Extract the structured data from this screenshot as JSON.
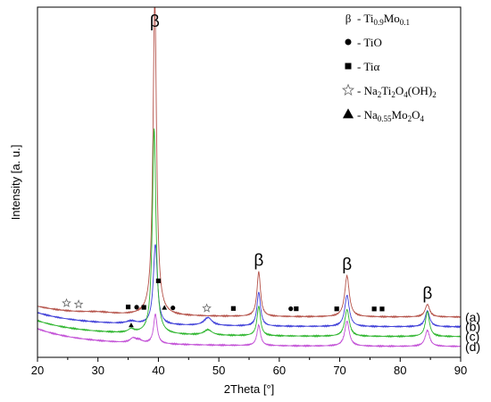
{
  "chart_data": {
    "type": "line",
    "xlabel": "2Theta [°]",
    "ylabel": "Intensity [a. u.]",
    "xlim": [
      20,
      90
    ],
    "xticks": [
      "20",
      "30",
      "40",
      "50",
      "60",
      "70",
      "80",
      "90"
    ],
    "grid": false,
    "legend_position": "top-right",
    "legend": [
      {
        "symbol": "β",
        "marker": "text",
        "label_parts": [
          [
            "Ti",
            ""
          ],
          [
            "0.9",
            "sub"
          ],
          [
            "Mo",
            ""
          ],
          [
            "0.1",
            "sub"
          ]
        ],
        "label_prefix": " - "
      },
      {
        "symbol": "circle",
        "marker": "circle",
        "label_parts": [
          [
            "TiO",
            ""
          ]
        ],
        "label_prefix": " - "
      },
      {
        "symbol": "square",
        "marker": "square",
        "label_parts": [
          [
            "Tiα",
            ""
          ]
        ],
        "label_prefix": " - "
      },
      {
        "symbol": "star",
        "marker": "star",
        "label_parts": [
          [
            "Na",
            ""
          ],
          [
            "2",
            "sub"
          ],
          [
            "Ti",
            ""
          ],
          [
            "2",
            "sub"
          ],
          [
            "O",
            ""
          ],
          [
            "4",
            "sub"
          ],
          [
            "(OH)",
            ""
          ],
          [
            "2",
            "sub"
          ]
        ],
        "label_prefix": " - "
      },
      {
        "symbol": "triangle",
        "marker": "triangle",
        "label_parts": [
          [
            "Na",
            ""
          ],
          [
            "0.55",
            "sub"
          ],
          [
            "Mo",
            ""
          ],
          [
            "2",
            "sub"
          ],
          [
            "O",
            ""
          ],
          [
            "4",
            "sub"
          ]
        ],
        "label_prefix": " - "
      }
    ],
    "series": [
      {
        "name": "(a)",
        "color": "#b5534a",
        "baseline": 0.33,
        "slope": 0.08,
        "bg": 0.04,
        "peaks": [
          [
            39.4,
            3.55,
            0.35
          ],
          [
            56.6,
            0.5,
            0.35
          ],
          [
            71.2,
            0.46,
            0.45
          ],
          [
            84.5,
            0.14,
            0.45
          ],
          [
            30,
            0.02,
            3
          ]
        ]
      },
      {
        "name": "(b)",
        "color": "#3f3fd8",
        "baseline": 0.22,
        "slope": 0.1,
        "bg": 0.06,
        "peaks": [
          [
            39.5,
            0.9,
            0.4
          ],
          [
            48.2,
            0.09,
            0.8
          ],
          [
            56.6,
            0.38,
            0.35
          ],
          [
            71.2,
            0.35,
            0.45
          ],
          [
            84.5,
            0.18,
            0.45
          ],
          [
            35.5,
            0.03,
            1
          ]
        ]
      },
      {
        "name": "(c)",
        "color": "#2db52d",
        "baseline": 0.11,
        "slope": 0.11,
        "bg": 0.07,
        "peaks": [
          [
            39.3,
            2.3,
            0.35
          ],
          [
            48.2,
            0.06,
            0.8
          ],
          [
            56.6,
            0.33,
            0.35
          ],
          [
            71.2,
            0.3,
            0.45
          ],
          [
            84.5,
            0.28,
            0.4
          ],
          [
            35.5,
            0.04,
            0.6
          ]
        ]
      },
      {
        "name": "(d)",
        "color": "#c24fd6",
        "baseline": 0.0,
        "slope": 0.12,
        "bg": 0.08,
        "peaks": [
          [
            39.5,
            0.33,
            0.35
          ],
          [
            56.6,
            0.23,
            0.35
          ],
          [
            71.2,
            0.28,
            0.45
          ],
          [
            84.5,
            0.18,
            0.45
          ],
          [
            35.8,
            0.05,
            0.6
          ],
          [
            36.8,
            0.03,
            0.6
          ]
        ]
      }
    ],
    "beta_annotations": [
      {
        "text": "β",
        "x": 39.4
      },
      {
        "text": "β",
        "x": 56.6
      },
      {
        "text": "β",
        "x": 71.2
      },
      {
        "text": "β",
        "x": 84.5
      }
    ],
    "phase_markers": [
      {
        "type": "star",
        "x": 24.8,
        "series": "(a)"
      },
      {
        "type": "star",
        "x": 26.8,
        "series": "(a)"
      },
      {
        "type": "square",
        "x": 35.0,
        "series": "(a)"
      },
      {
        "type": "circle",
        "x": 36.4,
        "series": "(a)"
      },
      {
        "type": "square",
        "x": 37.6,
        "series": "(a)"
      },
      {
        "type": "square",
        "x": 40.0,
        "series": "(a)",
        "above": 0.3
      },
      {
        "type": "triangle",
        "x": 41.0,
        "series": "(a)"
      },
      {
        "type": "circle",
        "x": 42.4,
        "series": "(a)"
      },
      {
        "type": "star",
        "x": 48.0,
        "series": "(a)"
      },
      {
        "type": "square",
        "x": 52.4,
        "series": "(a)"
      },
      {
        "type": "circle",
        "x": 61.9,
        "series": "(a)"
      },
      {
        "type": "square",
        "x": 62.8,
        "series": "(a)"
      },
      {
        "type": "square",
        "x": 69.5,
        "series": "(a)"
      },
      {
        "type": "square",
        "x": 75.7,
        "series": "(a)"
      },
      {
        "type": "square",
        "x": 77.0,
        "series": "(a)"
      },
      {
        "type": "triangle",
        "x": 35.5,
        "series": "(c)"
      }
    ]
  }
}
